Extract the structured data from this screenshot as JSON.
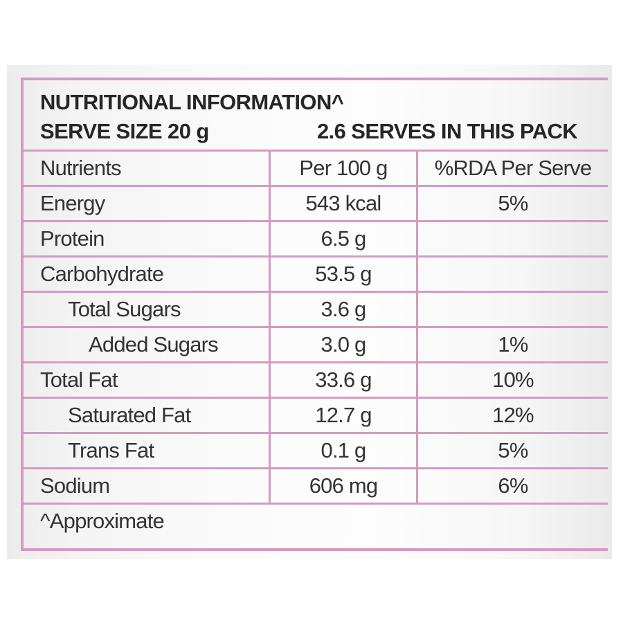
{
  "header": {
    "title": "NUTRITIONAL INFORMATION^",
    "serve_size": "SERVE SIZE 20 g",
    "serves_per_pack": "2.6 SERVES IN THIS PACK"
  },
  "table": {
    "columns": [
      "Nutrients",
      "Per 100 g",
      "%RDA Per Serve"
    ],
    "rows": [
      {
        "nutrient": "Energy",
        "per100": "543 kcal",
        "rda": "5%"
      },
      {
        "nutrient": "Protein",
        "per100": "6.5 g",
        "rda": ""
      },
      {
        "nutrient": "Carbohydrate",
        "per100": "53.5 g",
        "rda": ""
      },
      {
        "nutrient": "Total Sugars",
        "per100": "3.6 g",
        "rda": ""
      },
      {
        "nutrient": "Added Sugars",
        "per100": "3.0 g",
        "rda": "1%"
      },
      {
        "nutrient": "Total Fat",
        "per100": "33.6 g",
        "rda": "10%"
      },
      {
        "nutrient": "Saturated Fat",
        "per100": "12.7 g",
        "rda": "12%"
      },
      {
        "nutrient": "Trans Fat",
        "per100": "0.1 g",
        "rda": "5%"
      },
      {
        "nutrient": "Sodium",
        "per100": "606 mg",
        "rda": "6%"
      }
    ]
  },
  "footer": {
    "note": "^Approximate"
  },
  "colors": {
    "border": "#d59ac0",
    "text": "#333333"
  }
}
